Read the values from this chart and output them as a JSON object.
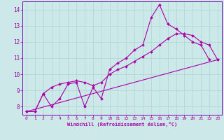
{
  "xlabel": "Windchill (Refroidissement éolien,°C)",
  "bg_color": "#cce8e8",
  "grid_color": "#aad4d4",
  "line_color": "#aa00aa",
  "spine_color": "#7700aa",
  "xlim": [
    -0.5,
    23.5
  ],
  "ylim": [
    7.5,
    14.5
  ],
  "xticks": [
    0,
    1,
    2,
    3,
    4,
    5,
    6,
    7,
    8,
    9,
    10,
    11,
    12,
    13,
    14,
    15,
    16,
    17,
    18,
    19,
    20,
    21,
    22,
    23
  ],
  "yticks": [
    8,
    9,
    10,
    11,
    12,
    13,
    14
  ],
  "series1_x": [
    0,
    1,
    2,
    3,
    4,
    5,
    6,
    7,
    8,
    9,
    10,
    11,
    12,
    13,
    14,
    15,
    16,
    17,
    18,
    19,
    20,
    21,
    22
  ],
  "series1_y": [
    7.7,
    7.7,
    8.8,
    8.0,
    8.5,
    9.4,
    9.5,
    8.0,
    9.2,
    8.5,
    10.3,
    10.7,
    11.0,
    11.5,
    11.8,
    13.5,
    14.3,
    13.1,
    12.8,
    12.4,
    12.0,
    11.8,
    10.9
  ],
  "series2_x": [
    0,
    1,
    2,
    3,
    4,
    5,
    6,
    7,
    8,
    9,
    10,
    11,
    12,
    13,
    14,
    15,
    16,
    17,
    18,
    19,
    20,
    21,
    22,
    23
  ],
  "series2_y": [
    7.7,
    7.7,
    8.8,
    9.2,
    9.4,
    9.5,
    9.6,
    9.5,
    9.3,
    9.5,
    10.0,
    10.3,
    10.5,
    10.8,
    11.1,
    11.4,
    11.8,
    12.2,
    12.5,
    12.5,
    12.4,
    12.0,
    11.8,
    10.9
  ],
  "series3_x": [
    0,
    23
  ],
  "series3_y": [
    7.7,
    10.9
  ]
}
